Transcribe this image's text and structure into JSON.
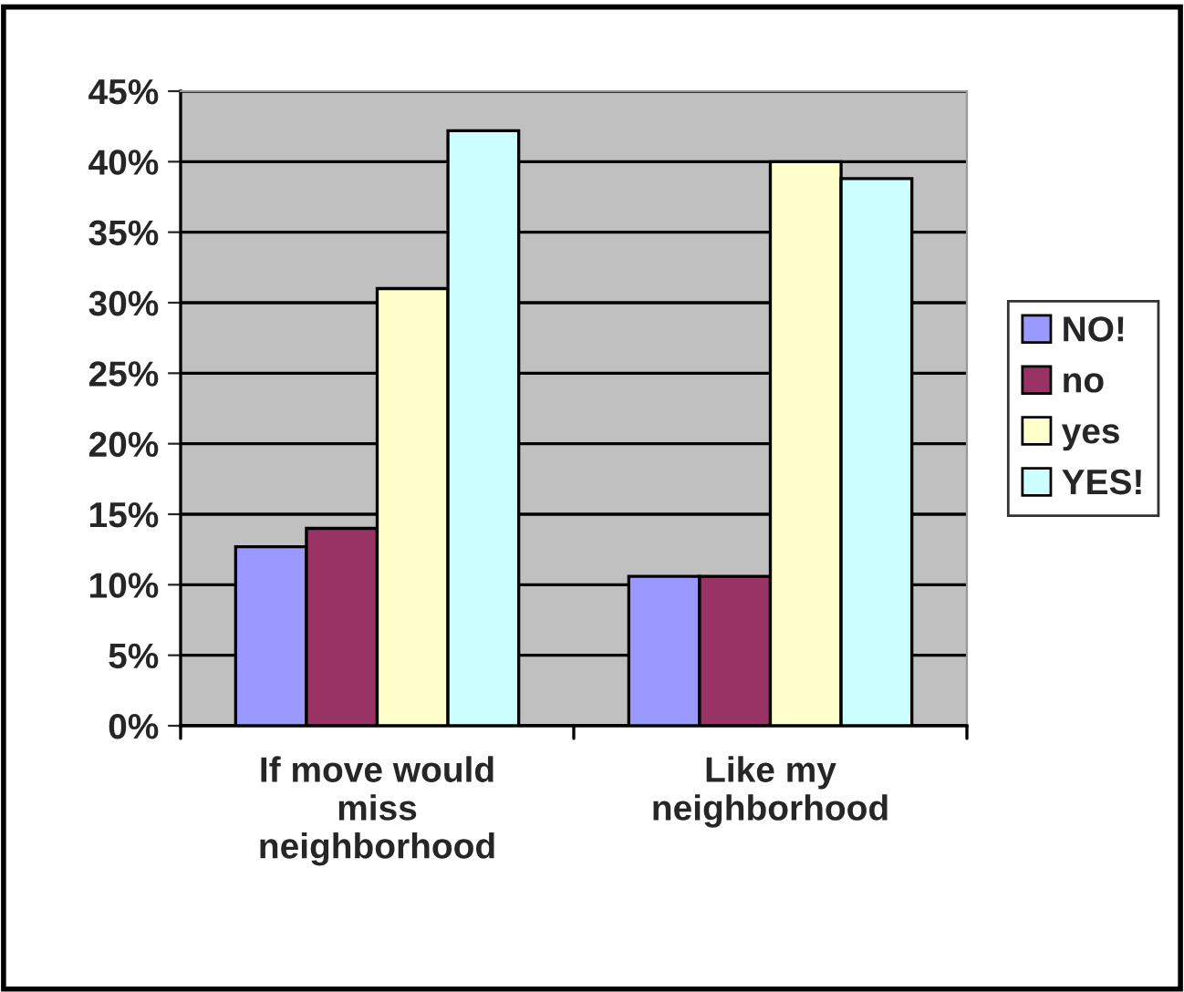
{
  "chart_data": {
    "type": "bar",
    "categories": [
      "If move would\nmiss\nneighborhood",
      "Like my\nneighborhood"
    ],
    "series": [
      {
        "name": "NO!",
        "color": "#9999ff",
        "values": [
          12.7,
          10.6
        ]
      },
      {
        "name": "no",
        "color": "#993366",
        "values": [
          14.0,
          10.6
        ]
      },
      {
        "name": "yes",
        "color": "#ffffcc",
        "values": [
          31.0,
          40.0
        ]
      },
      {
        "name": "YES!",
        "color": "#ccffff",
        "values": [
          42.2,
          38.8
        ]
      }
    ],
    "ylim": [
      0,
      45
    ],
    "yticks": [
      {
        "value": 0,
        "label": "0%"
      },
      {
        "value": 5,
        "label": "5%"
      },
      {
        "value": 10,
        "label": "10%"
      },
      {
        "value": 15,
        "label": "15%"
      },
      {
        "value": 20,
        "label": "20%"
      },
      {
        "value": 25,
        "label": "25%"
      },
      {
        "value": 30,
        "label": "30%"
      },
      {
        "value": 35,
        "label": "35%"
      },
      {
        "value": 40,
        "label": "40%"
      },
      {
        "value": 45,
        "label": "45%"
      }
    ],
    "grid": "y",
    "legend": "right"
  }
}
